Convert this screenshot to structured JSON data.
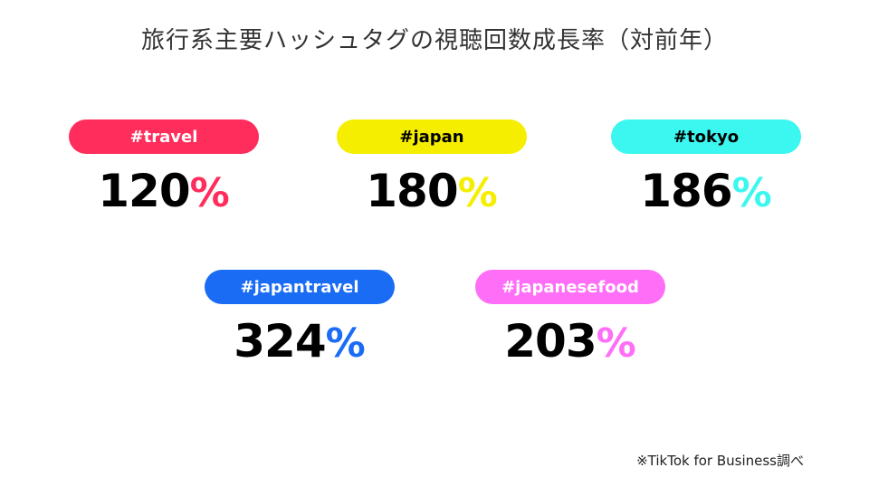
{
  "title": "旅行系主要ハッシュタグの視聴回数成長率（対前年）",
  "cards": [
    {
      "tag": "#travel",
      "value": "120",
      "unit": "%",
      "color": "#ff2d5b",
      "tag_text_color": "#ffffff"
    },
    {
      "tag": "#japan",
      "value": "180",
      "unit": "%",
      "color": "#f5ee00",
      "tag_text_color": "#000000"
    },
    {
      "tag": "#tokyo",
      "value": "186",
      "unit": "%",
      "color": "#3cf7f0",
      "tag_text_color": "#000000"
    },
    {
      "tag": "#japantravel",
      "value": "324",
      "unit": "%",
      "color": "#1a6cf5",
      "tag_text_color": "#ffffff"
    },
    {
      "tag": "#japanesefood",
      "value": "203",
      "unit": "%",
      "color": "#ff6ef7",
      "tag_text_color": "#ffffff"
    }
  ],
  "footnote": "※TikTok for Business調べ"
}
